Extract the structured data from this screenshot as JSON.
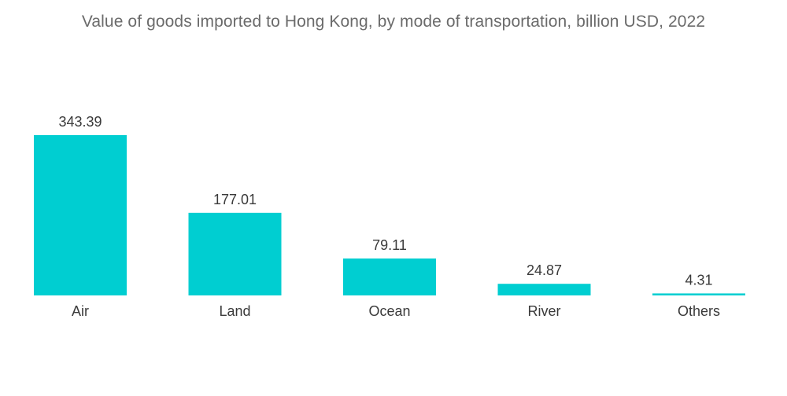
{
  "chart_data": {
    "type": "bar",
    "title": "Value of goods imported to Hong Kong, by mode of transportation, billion USD, 2022",
    "categories": [
      "Air",
      "Land",
      "Ocean",
      "River",
      "Others"
    ],
    "values": [
      343.39,
      177.01,
      79.11,
      24.87,
      4.31
    ],
    "value_labels": [
      "343.39",
      "177.01",
      "79.11",
      "24.87",
      "4.31"
    ],
    "xlabel": "",
    "ylabel": "",
    "ylim": [
      0,
      343.39
    ],
    "grid": false,
    "bar_color": "#00CED1"
  }
}
